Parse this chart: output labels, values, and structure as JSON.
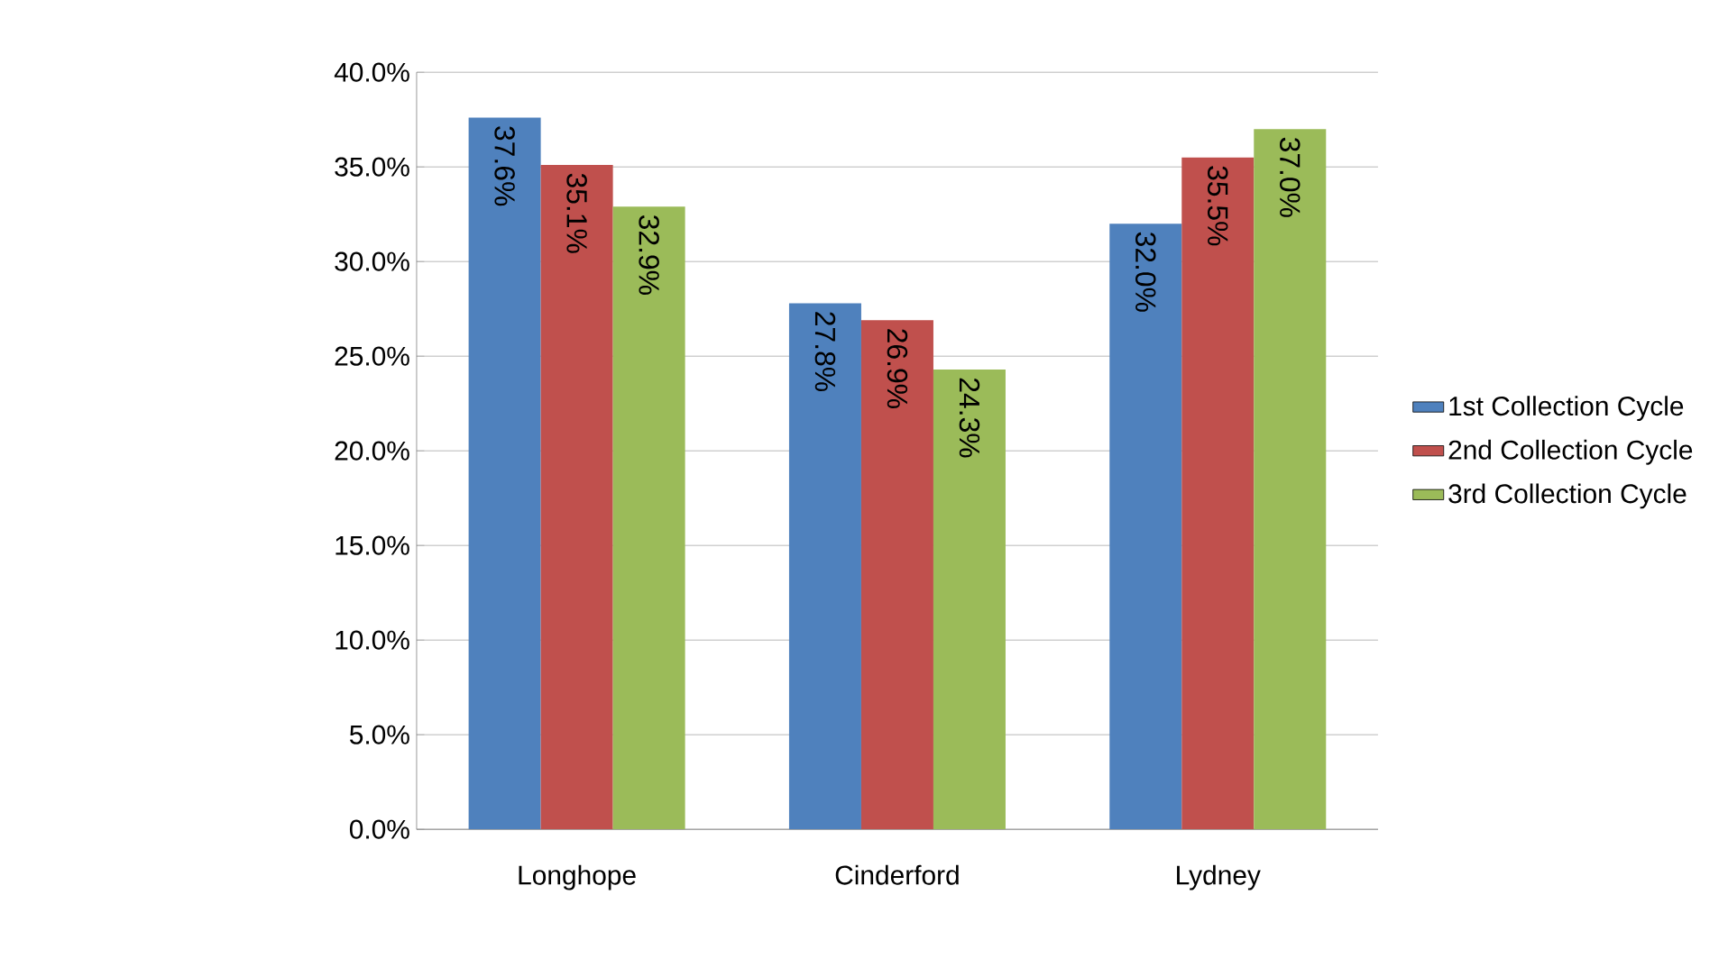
{
  "chart_data": {
    "type": "bar",
    "categories": [
      "Longhope",
      "Cinderford",
      "Lydney"
    ],
    "series": [
      {
        "name": "1st Collection  Cycle",
        "color": "#4f81bd",
        "values": [
          37.6,
          27.8,
          32.0
        ],
        "value_labels": [
          "37.6%",
          "27.8%",
          "32.0%"
        ]
      },
      {
        "name": "2nd Collection Cycle",
        "color": "#c0504d",
        "values": [
          35.1,
          26.9,
          35.5
        ],
        "value_labels": [
          "35.1%",
          "26.9%",
          "35.5%"
        ]
      },
      {
        "name": "3rd Collection Cycle",
        "color": "#9bbb59",
        "values": [
          32.9,
          24.3,
          37.0
        ],
        "value_labels": [
          "32.9%",
          "24.3%",
          "37.0%"
        ]
      }
    ],
    "ylim": [
      0,
      40
    ],
    "yticks": [
      {
        "value": 0,
        "label": "0.0%"
      },
      {
        "value": 5,
        "label": "5.0%"
      },
      {
        "value": 10,
        "label": "10.0%"
      },
      {
        "value": 15,
        "label": "15.0%"
      },
      {
        "value": 20,
        "label": "20.0%"
      },
      {
        "value": 25,
        "label": "25.0%"
      },
      {
        "value": 30,
        "label": "30.0%"
      },
      {
        "value": 35,
        "label": "35.0%"
      },
      {
        "value": 40,
        "label": "40.0%"
      }
    ],
    "grid": "y",
    "legend": "right"
  }
}
